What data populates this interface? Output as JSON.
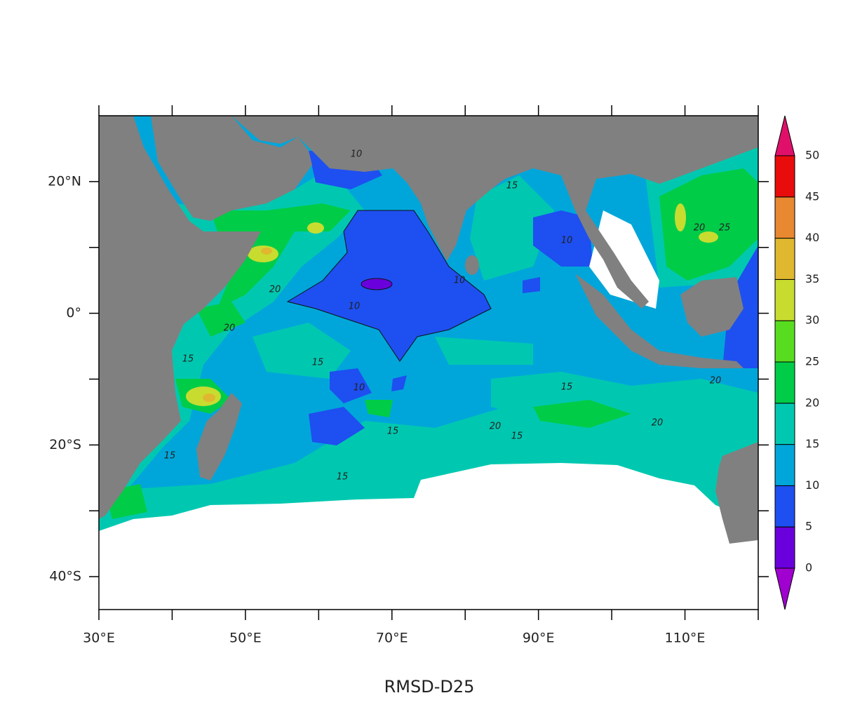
{
  "map": {
    "title": "RMSD-D25",
    "lon_range": [
      30,
      120
    ],
    "lat_range": [
      -45,
      30
    ],
    "lon_ticks": [
      30,
      40,
      50,
      60,
      70,
      80,
      90,
      100,
      110,
      120
    ],
    "lon_tick_labels": [
      {
        "value": 30,
        "label": "30°E"
      },
      {
        "value": 50,
        "label": "50°E"
      },
      {
        "value": 70,
        "label": "70°E"
      },
      {
        "value": 90,
        "label": "90°E"
      },
      {
        "value": 110,
        "label": "110°E"
      }
    ],
    "lat_ticks": [
      -40,
      -30,
      -20,
      -10,
      0,
      10,
      20
    ],
    "lat_tick_labels": [
      {
        "value": 20,
        "label": "20°N"
      },
      {
        "value": 0,
        "label": "0°"
      },
      {
        "value": -20,
        "label": "20°S"
      },
      {
        "value": -40,
        "label": "40°S"
      }
    ],
    "colorbar": {
      "levels": [
        0,
        5,
        10,
        15,
        20,
        25,
        30,
        35,
        40,
        45,
        50
      ],
      "colors": [
        "#6a00dc",
        "#1e4ff0",
        "#00a6da",
        "#00c8b0",
        "#00cc48",
        "#58dc20",
        "#c8dc30",
        "#e0b830",
        "#e88830",
        "#e80c0c"
      ],
      "under_color": "#a000d0",
      "over_color": "#e0106a"
    },
    "contour_labels": [
      10,
      10,
      10,
      10,
      10,
      15,
      15,
      15,
      15,
      15,
      15,
      15,
      15,
      20,
      20,
      20,
      20,
      20,
      25,
      20
    ]
  }
}
